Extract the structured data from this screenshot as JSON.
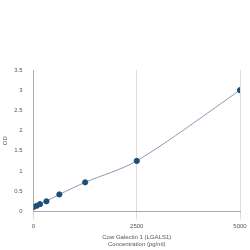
{
  "chart_data": {
    "type": "scatter",
    "x_label": "Cow Galectin 1 (LGALS1)\nConcentration (pg/ml)",
    "y_label": "OD",
    "x": [
      0,
      78,
      156,
      312,
      625,
      1250,
      2500,
      5000
    ],
    "values": [
      0.11,
      0.14,
      0.18,
      0.25,
      0.42,
      0.72,
      1.25,
      3.0
    ],
    "color": "#1f4e79",
    "marker": "circle",
    "line_style": "solid",
    "xlim": [
      0,
      5000
    ],
    "xticks": [
      0,
      2500,
      5000
    ],
    "ylim": [
      0,
      3.5
    ],
    "yticks": [
      0,
      0.5,
      1,
      1.5,
      2,
      2.5,
      3,
      3.5
    ],
    "grid": true
  }
}
